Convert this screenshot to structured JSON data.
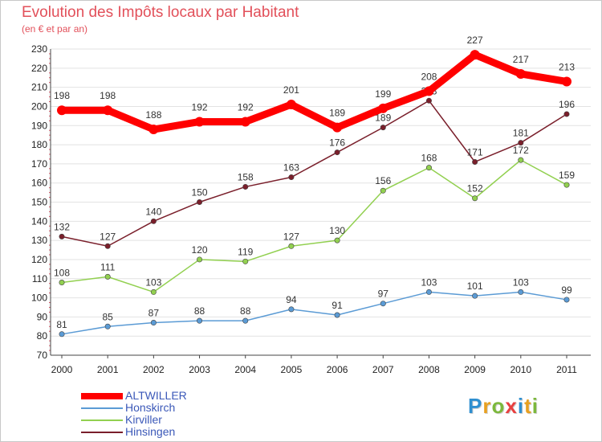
{
  "header": {
    "title": "Evolution des Impôts locaux par Habitant",
    "subtitle": "(en € et par an)"
  },
  "logo": {
    "text": "Proxiti",
    "letters": [
      {
        "ch": "P",
        "color": "#2f8fd0"
      },
      {
        "ch": "r",
        "color": "#e8a020"
      },
      {
        "ch": "o",
        "color": "#7cb83c"
      },
      {
        "ch": "x",
        "color": "#e84040"
      },
      {
        "ch": "i",
        "color": "#2f8fd0"
      },
      {
        "ch": "t",
        "color": "#e8a020"
      },
      {
        "ch": "i",
        "color": "#7cb83c"
      }
    ]
  },
  "chart_data": {
    "type": "line",
    "title": "Evolution des Impôts locaux par Habitant",
    "subtitle": "(en € et par an)",
    "xlabel": "",
    "ylabel": "",
    "x": [
      "2000",
      "2001",
      "2002",
      "2003",
      "2004",
      "2005",
      "2006",
      "2007",
      "2008",
      "2009",
      "2010",
      "2011"
    ],
    "ylim": [
      70,
      230
    ],
    "yticks": [
      70,
      80,
      90,
      100,
      110,
      120,
      130,
      140,
      150,
      160,
      170,
      180,
      190,
      200,
      210,
      220,
      230
    ],
    "grid": "horizontal",
    "legend_position": "bottom-left",
    "series": [
      {
        "name": "ALTWILLER",
        "color": "#ff0000",
        "values": [
          198,
          198,
          188,
          192,
          192,
          201,
          189,
          199,
          208,
          227,
          217,
          213
        ]
      },
      {
        "name": "Honskirch",
        "color": "#5b9bd5",
        "values": [
          81,
          85,
          87,
          88,
          88,
          94,
          91,
          97,
          103,
          101,
          103,
          99
        ]
      },
      {
        "name": "Kirviller",
        "color": "#92d050",
        "values": [
          108,
          111,
          103,
          120,
          119,
          127,
          130,
          156,
          168,
          152,
          172,
          159
        ]
      },
      {
        "name": "Hinsingen",
        "color": "#7a1f2b",
        "values": [
          132,
          127,
          140,
          150,
          158,
          163,
          176,
          189,
          203,
          171,
          181,
          196
        ]
      }
    ]
  }
}
